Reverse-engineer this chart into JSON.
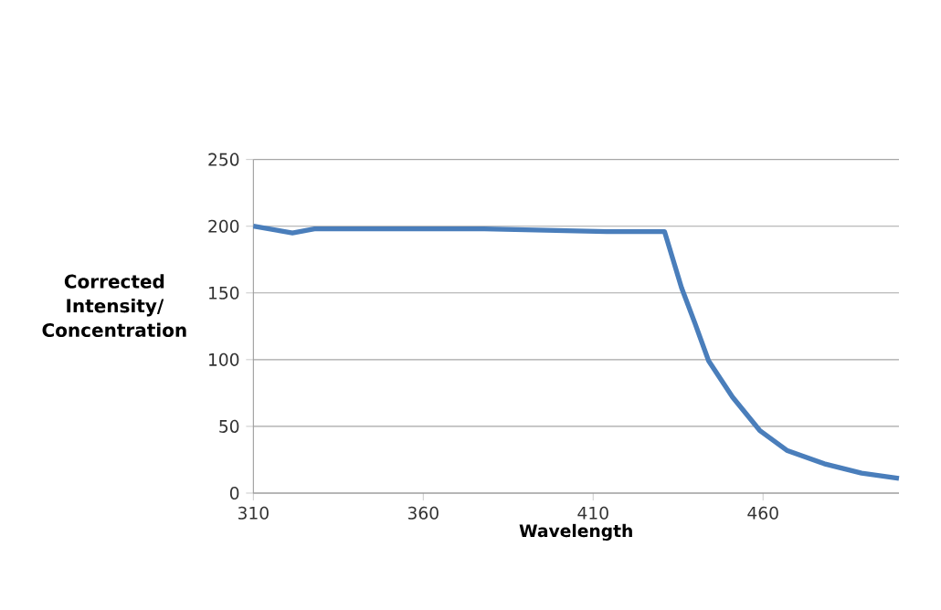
{
  "chart_data": {
    "type": "line",
    "xlabel": "Wavelength",
    "ylabel": "Corrected Intensity/ Concentration",
    "x": [
      310,
      321.5,
      328,
      378,
      414,
      431,
      436,
      440,
      444,
      451,
      459,
      467,
      478,
      489,
      500
    ],
    "series": [
      {
        "color": "#4a7ebb",
        "values": [
          200,
          195,
          198,
          198,
          196,
          196,
          154,
          127,
          99,
          72,
          47,
          32,
          22,
          15,
          11
        ]
      }
    ],
    "xlim": [
      310,
      500
    ],
    "xticks": [
      310,
      360,
      410,
      460
    ],
    "ylim": [
      0,
      250
    ],
    "yticks": [
      0,
      50,
      100,
      150,
      200,
      250
    ],
    "grid": "y",
    "marker": "none",
    "line_style": "solid"
  }
}
